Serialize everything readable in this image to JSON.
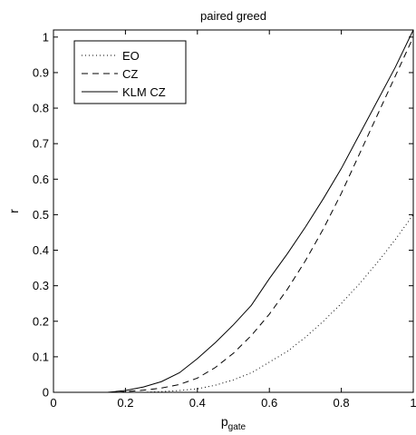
{
  "chart_data": {
    "type": "line",
    "title": "paired greed",
    "xlabel": "p",
    "xlabel_sub": "gate",
    "ylabel": "r",
    "xlim": [
      0,
      1
    ],
    "ylim": [
      0,
      1.02
    ],
    "xticks": [
      0,
      0.2,
      0.4,
      0.6,
      0.8,
      1
    ],
    "xtick_labels": [
      "0",
      "0.2",
      "0.4",
      "0.6",
      "0.8",
      "1"
    ],
    "yticks": [
      0,
      0.1,
      0.2,
      0.3,
      0.4,
      0.5,
      0.6,
      0.7,
      0.8,
      0.9,
      1
    ],
    "ytick_labels": [
      "0",
      "0.1",
      "0.2",
      "0.3",
      "0.4",
      "0.5",
      "0.6",
      "0.7",
      "0.8",
      "0.9",
      "1"
    ],
    "grid": false,
    "legend_position": "top-left",
    "series": [
      {
        "name": "EO",
        "style": "dotted",
        "x": [
          0.25,
          0.3,
          0.35,
          0.4,
          0.45,
          0.5,
          0.55,
          0.6,
          0.65,
          0.7,
          0.75,
          0.8,
          0.85,
          0.9,
          0.95,
          1.0
        ],
        "y": [
          0.0,
          0.002,
          0.005,
          0.01,
          0.02,
          0.035,
          0.055,
          0.085,
          0.115,
          0.155,
          0.2,
          0.25,
          0.305,
          0.365,
          0.43,
          0.5
        ]
      },
      {
        "name": "CZ",
        "style": "dashed",
        "x": [
          0.18,
          0.2,
          0.25,
          0.3,
          0.35,
          0.4,
          0.45,
          0.5,
          0.55,
          0.6,
          0.65,
          0.7,
          0.75,
          0.8,
          0.85,
          0.9,
          0.95,
          1.0
        ],
        "y": [
          0.0,
          0.002,
          0.006,
          0.012,
          0.022,
          0.04,
          0.07,
          0.11,
          0.16,
          0.22,
          0.29,
          0.37,
          0.46,
          0.56,
          0.67,
          0.78,
          0.89,
          1.0
        ]
      },
      {
        "name": "KLM CZ",
        "style": "solid",
        "x": [
          0.15,
          0.2,
          0.25,
          0.3,
          0.35,
          0.4,
          0.45,
          0.5,
          0.55,
          0.6,
          0.65,
          0.7,
          0.75,
          0.8,
          0.85,
          0.9,
          0.95,
          1.0
        ],
        "y": [
          0.0,
          0.005,
          0.015,
          0.03,
          0.055,
          0.095,
          0.14,
          0.19,
          0.245,
          0.32,
          0.39,
          0.465,
          0.545,
          0.63,
          0.725,
          0.82,
          0.915,
          1.02
        ]
      }
    ]
  }
}
